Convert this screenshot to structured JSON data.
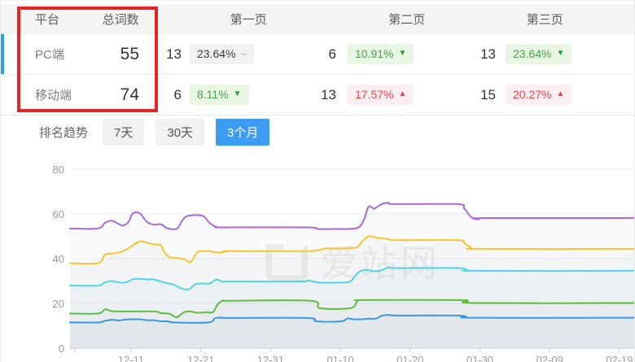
{
  "table": {
    "headers": [
      "平台",
      "总词数",
      "第一页",
      "第二页",
      "第三页"
    ],
    "rows": [
      {
        "platform": "PC端",
        "total": "55",
        "pages": [
          {
            "count": "13",
            "pct": "23.64%",
            "dir": "flat",
            "arrow": "−"
          },
          {
            "count": "6",
            "pct": "10.91%",
            "dir": "down",
            "arrow": "▼"
          },
          {
            "count": "13",
            "pct": "23.64%",
            "dir": "down",
            "arrow": "▼"
          }
        ]
      },
      {
        "platform": "移动端",
        "total": "74",
        "pages": [
          {
            "count": "6",
            "pct": "8.11%",
            "dir": "down",
            "arrow": "▼"
          },
          {
            "count": "13",
            "pct": "17.57%",
            "dir": "up",
            "arrow": "▲"
          },
          {
            "count": "15",
            "pct": "20.27%",
            "dir": "up",
            "arrow": "▲"
          }
        ]
      }
    ]
  },
  "trend": {
    "label": "排名趋势",
    "tabs": [
      {
        "label": "7天",
        "active": false
      },
      {
        "label": "30天",
        "active": false
      },
      {
        "label": "3个月",
        "active": true
      }
    ]
  },
  "colors": {
    "accent_blue": "#3b9cf1",
    "selected_row_bar": "#2ba2e8",
    "annotation_red": "#e52424",
    "badge_up_red": "#ee3f4d",
    "badge_down_green": "#4ba14b"
  },
  "chart_data": {
    "type": "line",
    "title": "排名趋势",
    "watermark": "爱站网",
    "grid": true,
    "legend": false,
    "y_axis": {
      "ticks": [
        0,
        20,
        40,
        60,
        80
      ],
      "range": [
        0,
        88
      ]
    },
    "x_axis": {
      "tick_labels": [
        "12-11",
        "12-21",
        "12-31",
        "01-10",
        "01-20",
        "01-30",
        "02-09",
        "02-19"
      ],
      "tick_days": [
        8.75,
        18.75,
        28.75,
        38.75,
        48.75,
        58.75,
        68.75,
        78.75
      ]
    },
    "series": [
      {
        "name": "purple-line",
        "color": "#ab68d8",
        "points": [
          [
            0,
            53.5
          ],
          [
            4,
            53.5
          ],
          [
            5,
            56
          ],
          [
            6,
            57
          ],
          [
            7,
            55.5
          ],
          [
            7.6,
            54.8
          ],
          [
            8.4,
            56.5
          ],
          [
            9,
            60.3
          ],
          [
            10,
            60.3
          ],
          [
            11,
            56.5
          ],
          [
            12,
            55.2
          ],
          [
            13,
            55.4
          ],
          [
            13.8,
            53.8
          ],
          [
            14.6,
            53.2
          ],
          [
            15.4,
            53.6
          ],
          [
            16.2,
            57.5
          ],
          [
            17,
            59.2
          ],
          [
            19,
            59.2
          ],
          [
            20,
            56
          ],
          [
            21,
            54.2
          ],
          [
            22,
            54
          ],
          [
            34,
            54
          ],
          [
            35.5,
            53.3
          ],
          [
            38,
            53.3
          ],
          [
            41,
            53.6
          ],
          [
            42,
            56.5
          ],
          [
            42.8,
            63.2
          ],
          [
            43.6,
            62.4
          ],
          [
            44.6,
            64.3
          ],
          [
            45.6,
            65
          ],
          [
            46.6,
            64.4
          ],
          [
            55.5,
            64.4
          ],
          [
            56.5,
            62.5
          ],
          [
            57.5,
            58.6
          ],
          [
            58.6,
            57.6
          ],
          [
            59.6,
            58.2
          ],
          [
            80,
            58.2
          ],
          [
            81,
            59.2
          ]
        ]
      },
      {
        "name": "yellow-line",
        "color": "#f6c52e",
        "points": [
          [
            0,
            38
          ],
          [
            4,
            38
          ],
          [
            5,
            41.8
          ],
          [
            6,
            42.3
          ],
          [
            7,
            42.8
          ],
          [
            8,
            44
          ],
          [
            9,
            46
          ],
          [
            10,
            47.8
          ],
          [
            11,
            47.2
          ],
          [
            12,
            46.4
          ],
          [
            13,
            46
          ],
          [
            13.6,
            42.5
          ],
          [
            14.4,
            40.6
          ],
          [
            15.5,
            40.2
          ],
          [
            16.5,
            39.6
          ],
          [
            17.3,
            38.4
          ],
          [
            18.2,
            42.8
          ],
          [
            19,
            43.4
          ],
          [
            20,
            43.4
          ],
          [
            21,
            42.8
          ],
          [
            22,
            42.8
          ],
          [
            23,
            43.4
          ],
          [
            34,
            43.4
          ],
          [
            36.5,
            44.5
          ],
          [
            38,
            44.5
          ],
          [
            41,
            45
          ],
          [
            41.8,
            47.5
          ],
          [
            42.8,
            50
          ],
          [
            44,
            49.4
          ],
          [
            45.5,
            48.8
          ],
          [
            47,
            48.3
          ],
          [
            55.5,
            48.3
          ],
          [
            56.5,
            47
          ],
          [
            57.6,
            44.8
          ],
          [
            58.8,
            44.4
          ],
          [
            80,
            44.4
          ],
          [
            81,
            45.4
          ]
        ]
      },
      {
        "name": "cyan-line",
        "color": "#4fd4e8",
        "points": [
          [
            0,
            28
          ],
          [
            4,
            28
          ],
          [
            5,
            29.4
          ],
          [
            6,
            30
          ],
          [
            7,
            29.4
          ],
          [
            8,
            29.4
          ],
          [
            9,
            30.8
          ],
          [
            10,
            31
          ],
          [
            11,
            30.7
          ],
          [
            12,
            30.7
          ],
          [
            13,
            29.8
          ],
          [
            14,
            29
          ],
          [
            15,
            28.2
          ],
          [
            16,
            26.6
          ],
          [
            17,
            26.3
          ],
          [
            18,
            28.6
          ],
          [
            19,
            28.9
          ],
          [
            20,
            28.9
          ],
          [
            21,
            30.7
          ],
          [
            21.8,
            29.8
          ],
          [
            23,
            29.8
          ],
          [
            33,
            29.8
          ],
          [
            34,
            30.3
          ],
          [
            35.8,
            29.3
          ],
          [
            38,
            29.3
          ],
          [
            40,
            29.6
          ],
          [
            40.8,
            32
          ],
          [
            41.6,
            34.4
          ],
          [
            42.6,
            35
          ],
          [
            43.5,
            34.4
          ],
          [
            44.6,
            34.7
          ],
          [
            45.6,
            36.2
          ],
          [
            46.6,
            35.8
          ],
          [
            55.5,
            35.8
          ],
          [
            57,
            34.9
          ],
          [
            58.2,
            34.6
          ],
          [
            80,
            34.6
          ],
          [
            81,
            35.6
          ]
        ]
      },
      {
        "name": "green-line",
        "color": "#5dbd3f",
        "points": [
          [
            0,
            15.5
          ],
          [
            4,
            15.5
          ],
          [
            5,
            17.4
          ],
          [
            5.8,
            16.7
          ],
          [
            7,
            16.4
          ],
          [
            12,
            16.4
          ],
          [
            13,
            15.7
          ],
          [
            14.3,
            15.3
          ],
          [
            15.3,
            13.8
          ],
          [
            16.3,
            16
          ],
          [
            17.2,
            16.4
          ],
          [
            18.3,
            15.8
          ],
          [
            19.5,
            16.1
          ],
          [
            20.5,
            16.1
          ],
          [
            21.2,
            19.8
          ],
          [
            22,
            21.2
          ],
          [
            23,
            21.2
          ],
          [
            34.5,
            21.2
          ],
          [
            35.8,
            17.9
          ],
          [
            40.2,
            17.9
          ],
          [
            41.2,
            21
          ],
          [
            42,
            21.5
          ],
          [
            55.5,
            21.5
          ],
          [
            57,
            21.1
          ],
          [
            58.2,
            20.2
          ],
          [
            80,
            20.2
          ],
          [
            81,
            21
          ]
        ]
      },
      {
        "name": "blue-line",
        "color": "#3e97e2",
        "points": [
          [
            0,
            11.5
          ],
          [
            4,
            11.5
          ],
          [
            5,
            12.2
          ],
          [
            6,
            12.7
          ],
          [
            7,
            12.4
          ],
          [
            8,
            12.8
          ],
          [
            9,
            12.9
          ],
          [
            10,
            12.9
          ],
          [
            11,
            12.5
          ],
          [
            12,
            12.5
          ],
          [
            13,
            12
          ],
          [
            14,
            12
          ],
          [
            15,
            11.5
          ],
          [
            19.8,
            11.5
          ],
          [
            20.8,
            13.4
          ],
          [
            21.8,
            13.7
          ],
          [
            22.8,
            13.5
          ],
          [
            34,
            13.5
          ],
          [
            35.3,
            12
          ],
          [
            38.8,
            12
          ],
          [
            39.8,
            13.3
          ],
          [
            40.6,
            12.9
          ],
          [
            41.8,
            12.9
          ],
          [
            42.8,
            13.2
          ],
          [
            43.8,
            13.2
          ],
          [
            44.8,
            14.6
          ],
          [
            45.8,
            14.8
          ],
          [
            47,
            14.6
          ],
          [
            55.5,
            14.6
          ],
          [
            56.8,
            14.1
          ],
          [
            58,
            13.6
          ],
          [
            80,
            13.6
          ],
          [
            81,
            14.3
          ]
        ]
      }
    ]
  }
}
